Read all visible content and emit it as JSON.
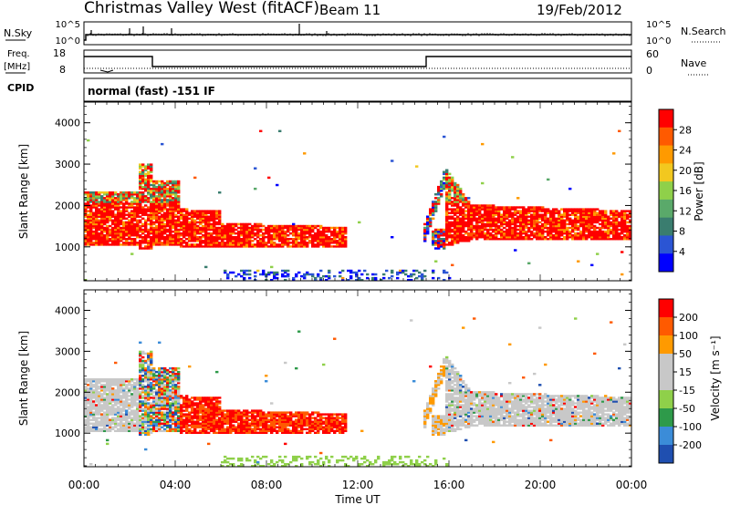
{
  "header": {
    "station": "Christmas Valley West (fitACF)",
    "beam": "Beam 11",
    "date": "19/Feb/2012"
  },
  "top_panels": {
    "nsky_label": "N.Sky",
    "nsky_ticks": [
      "10^5",
      "10^0"
    ],
    "nsearch_label": "N.Search",
    "nsearch_ticks": [
      "10^5",
      "10^0"
    ],
    "freq_label": "Freq.",
    "freq_unit": "[MHz]",
    "freq_ticks": [
      "18",
      "8"
    ],
    "nave_label": "Nave",
    "nave_ticks": [
      "60",
      "0"
    ],
    "cpid_label": "CPID",
    "cpid_text": "normal (fast) -151 IF"
  },
  "colors": {
    "power": [
      "#0000ff",
      "#2b55d4",
      "#3a7d6f",
      "#5aa96a",
      "#8fd04a",
      "#f2c81f",
      "#ff9a00",
      "#ff5a00",
      "#ff0000"
    ],
    "velocity": [
      "#1f4fb0",
      "#3b8cd8",
      "#2e9a4a",
      "#8fd04a",
      "#c8c8c8",
      "#c8c8c8",
      "#ff9a00",
      "#ff5a00",
      "#ff0000"
    ]
  },
  "chart_data": [
    {
      "type": "heatmap",
      "name": "Power",
      "ylabel": "Slant Range [km]",
      "yticks": [
        "4000",
        "3000",
        "2000",
        "1000"
      ],
      "ylim": [
        180,
        4500
      ],
      "xlim": [
        0,
        24
      ],
      "colorbar_label": "Power [dB]",
      "colorbar_ticks": [
        "28",
        "24",
        "20",
        "16",
        "12",
        "8",
        "4"
      ]
    },
    {
      "type": "heatmap",
      "name": "Velocity",
      "ylabel": "Slant Range [km]",
      "yticks": [
        "4000",
        "3000",
        "2000",
        "1000"
      ],
      "ylim": [
        180,
        4500
      ],
      "xlim": [
        0,
        24
      ],
      "xticks": [
        "00:00",
        "04:00",
        "08:00",
        "12:00",
        "16:00",
        "20:00",
        "00:00"
      ],
      "xlabel": "Time UT",
      "colorbar_label": "Velocity [m s⁻¹]",
      "colorbar_ticks": [
        "200",
        "100",
        "50",
        "15",
        "-15",
        "-50",
        "-100",
        "-200"
      ]
    }
  ]
}
